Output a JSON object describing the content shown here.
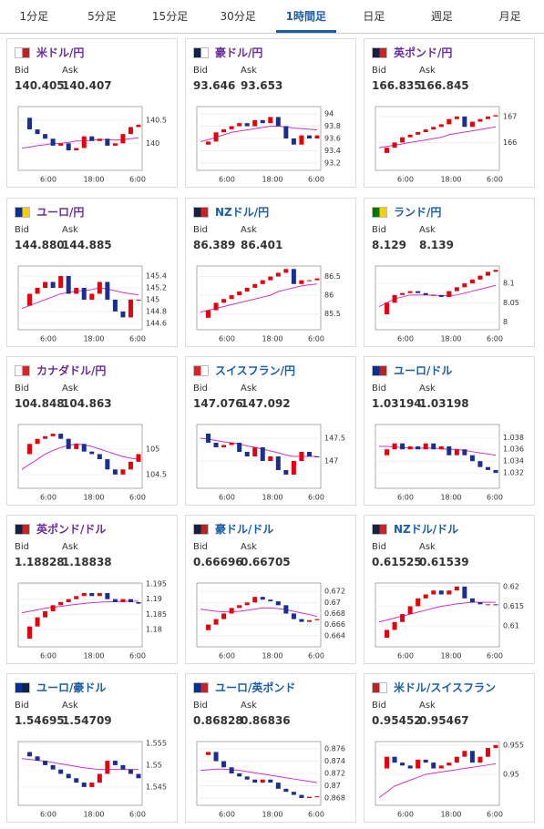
{
  "tabs": [
    "1分足",
    "5分足",
    "15分足",
    "30分足",
    "1時間足",
    "日足",
    "週足",
    "月足"
  ],
  "active_tab": 4,
  "bid_label": "Bid",
  "ask_label": "Ask",
  "xtick_labels": [
    "6:00",
    "18:00",
    "6:00"
  ],
  "candle_up": "#e8000b",
  "candle_down": "#1a2f8f",
  "ma_color": "#cc33cc",
  "cards": [
    {
      "pair": "米ドル/円",
      "title_color": "#6b2d9e",
      "bid": "140.405",
      "ask": "140.407",
      "chart": {
        "type": "candlestick",
        "ylim": [
          139.42,
          140.79
        ],
        "yticks": [
          140.5,
          140
        ],
        "closes": [
          140.55,
          140.3,
          140.2,
          140.1,
          139.95,
          140.0,
          139.85,
          139.9,
          140.15,
          140.05,
          140.1,
          139.95,
          140.0,
          140.2,
          140.35,
          140.4
        ],
        "ma": [
          139.9,
          139.92,
          139.95,
          139.97,
          140.0,
          140.0,
          140.02,
          140.05,
          140.05,
          140.07,
          140.08,
          140.08,
          140.07,
          140.08,
          140.1,
          140.12
        ]
      }
    },
    {
      "pair": "豪ドル/円",
      "title_color": "#6b2d9e",
      "bid": "93.646",
      "ask": "93.653",
      "chart": {
        "type": "candlestick",
        "ylim": [
          93.08,
          94.12
        ],
        "yticks": [
          94,
          93.8,
          93.6,
          93.4,
          93.2
        ],
        "closes": [
          93.5,
          93.55,
          93.7,
          93.75,
          93.8,
          93.85,
          93.8,
          93.9,
          93.85,
          93.95,
          93.8,
          93.6,
          93.5,
          93.65,
          93.6,
          93.65
        ],
        "ma": [
          93.55,
          93.58,
          93.62,
          93.66,
          93.7,
          93.72,
          93.74,
          93.76,
          93.78,
          93.8,
          93.8,
          93.79,
          93.77,
          93.76,
          93.75,
          93.74
        ]
      }
    },
    {
      "pair": "英ポンド/円",
      "title_color": "#6b2d9e",
      "bid": "166.835",
      "ask": "166.845",
      "chart": {
        "type": "candlestick",
        "ylim": [
          164.93,
          167.38
        ],
        "yticks": [
          167,
          166
        ],
        "closes": [
          165.6,
          165.8,
          166.0,
          166.2,
          166.3,
          166.4,
          166.5,
          166.6,
          166.7,
          166.9,
          167.0,
          166.6,
          166.8,
          166.9,
          167.0,
          167.05
        ],
        "ma": [
          165.8,
          165.85,
          165.9,
          165.95,
          166.0,
          166.05,
          166.1,
          166.15,
          166.2,
          166.3,
          166.35,
          166.4,
          166.45,
          166.5,
          166.55,
          166.6
        ]
      }
    },
    {
      "pair": "ユーロ/円",
      "title_color": "#6b2d9e",
      "bid": "144.880",
      "ask": "144.885",
      "chart": {
        "type": "candlestick",
        "ylim": [
          144.49,
          145.57
        ],
        "yticks": [
          145.4,
          145.2,
          145,
          144.8,
          144.6
        ],
        "closes": [
          144.9,
          145.1,
          145.2,
          145.3,
          145.2,
          145.4,
          145.1,
          145.2,
          145.0,
          145.1,
          145.3,
          145.0,
          144.8,
          144.7,
          145.0,
          145.0
        ],
        "ma": [
          144.85,
          144.9,
          144.95,
          145.0,
          145.05,
          145.1,
          145.12,
          145.15,
          145.15,
          145.17,
          145.2,
          145.18,
          145.15,
          145.12,
          145.1,
          145.08
        ]
      }
    },
    {
      "pair": "NZドル/円",
      "title_color": "#1a5ea8",
      "bid": "86.389",
      "ask": "86.401",
      "chart": {
        "type": "candlestick",
        "ylim": [
          85.08,
          86.78
        ],
        "yticks": [
          86.5,
          86,
          85.5
        ],
        "closes": [
          85.4,
          85.6,
          85.8,
          85.9,
          86.0,
          86.1,
          86.2,
          86.3,
          86.4,
          86.5,
          86.6,
          86.7,
          86.3,
          86.4,
          86.4,
          86.45
        ],
        "ma": [
          85.55,
          85.6,
          85.65,
          85.7,
          85.75,
          85.8,
          85.85,
          85.9,
          85.95,
          86.0,
          86.1,
          86.15,
          86.2,
          86.25,
          86.28,
          86.3
        ]
      }
    },
    {
      "pair": "ランド/円",
      "title_color": "#1a5ea8",
      "bid": "8.129",
      "ask": "8.139",
      "chart": {
        "type": "candlestick",
        "ylim": [
          7.98,
          8.145
        ],
        "yticks": [
          8.1,
          8.05,
          8
        ],
        "closes": [
          8.02,
          8.05,
          8.07,
          8.075,
          8.08,
          8.075,
          8.07,
          8.07,
          8.065,
          8.08,
          8.09,
          8.1,
          8.11,
          8.12,
          8.13,
          8.135
        ],
        "ma": [
          8.04,
          8.05,
          8.06,
          8.065,
          8.07,
          8.07,
          8.07,
          8.07,
          8.068,
          8.068,
          8.07,
          8.075,
          8.08,
          8.085,
          8.09,
          8.095
        ]
      }
    },
    {
      "pair": "カナダドル/円",
      "title_color": "#6b2d9e",
      "bid": "104.848",
      "ask": "104.863",
      "chart": {
        "type": "candlestick",
        "ylim": [
          104.23,
          105.48
        ],
        "yticks": [
          105,
          104.5
        ],
        "closes": [
          104.9,
          105.1,
          105.2,
          105.25,
          105.3,
          105.2,
          105.0,
          105.1,
          104.95,
          104.9,
          104.8,
          104.6,
          104.5,
          104.6,
          104.75,
          104.9
        ],
        "ma": [
          104.6,
          104.7,
          104.8,
          104.9,
          104.97,
          105.03,
          105.07,
          105.1,
          105.08,
          105.05,
          105.0,
          104.95,
          104.9,
          104.85,
          104.82,
          104.8
        ]
      }
    },
    {
      "pair": "スイスフラン/円",
      "title_color": "#1a5ea8",
      "bid": "147.076",
      "ask": "147.092",
      "chart": {
        "type": "candlestick",
        "ylim": [
          146.4,
          147.8
        ],
        "yticks": [
          147.5,
          147
        ],
        "closes": [
          147.6,
          147.4,
          147.3,
          147.35,
          147.4,
          147.2,
          147.1,
          147.3,
          147.0,
          147.1,
          146.8,
          146.7,
          147.0,
          147.2,
          147.1,
          147.08
        ],
        "ma": [
          147.5,
          147.48,
          147.45,
          147.42,
          147.4,
          147.37,
          147.33,
          147.3,
          147.26,
          147.22,
          147.18,
          147.13,
          147.1,
          147.1,
          147.1,
          147.1
        ]
      }
    },
    {
      "pair": "ユーロ/ドル",
      "title_color": "#1a5ea8",
      "bid": "1.03194",
      "ask": "1.03198",
      "chart": {
        "type": "candlestick",
        "ylim": [
          1.0294,
          1.0402
        ],
        "yticks": [
          1.038,
          1.036,
          1.034,
          1.032
        ],
        "closes": [
          1.035,
          1.036,
          1.037,
          1.036,
          1.0365,
          1.036,
          1.037,
          1.036,
          1.0365,
          1.035,
          1.036,
          1.035,
          1.034,
          1.033,
          1.0325,
          1.032
        ],
        "ma": [
          1.0365,
          1.0365,
          1.0364,
          1.0363,
          1.0362,
          1.0362,
          1.0362,
          1.0362,
          1.0361,
          1.036,
          1.036,
          1.0358,
          1.0356,
          1.0354,
          1.0352,
          1.035
        ]
      }
    },
    {
      "pair": "英ポンド/ドル",
      "title_color": "#6b2d9e",
      "bid": "1.18828",
      "ask": "1.18838",
      "chart": {
        "type": "candlestick",
        "ylim": [
          1.1743,
          1.1953
        ],
        "yticks": [
          1.195,
          1.19,
          1.185,
          1.18
        ],
        "closes": [
          1.177,
          1.181,
          1.184,
          1.186,
          1.188,
          1.189,
          1.19,
          1.191,
          1.192,
          1.191,
          1.192,
          1.19,
          1.189,
          1.19,
          1.189,
          1.1885
        ],
        "ma": [
          1.1855,
          1.186,
          1.1865,
          1.187,
          1.1873,
          1.1876,
          1.188,
          1.1883,
          1.1886,
          1.1888,
          1.189,
          1.1891,
          1.1892,
          1.1893,
          1.1893,
          1.1893
        ]
      }
    },
    {
      "pair": "豪ドル/ドル",
      "title_color": "#1a5ea8",
      "bid": "0.66696",
      "ask": "0.66705",
      "chart": {
        "type": "candlestick",
        "ylim": [
          0.662,
          0.6735
        ],
        "yticks": [
          0.672,
          0.67,
          0.668,
          0.666,
          0.664
        ],
        "closes": [
          0.665,
          0.666,
          0.667,
          0.668,
          0.669,
          0.6695,
          0.67,
          0.671,
          0.6705,
          0.6702,
          0.6695,
          0.668,
          0.667,
          0.6665,
          0.6668,
          0.667
        ],
        "ma": [
          0.6688,
          0.6686,
          0.6684,
          0.6683,
          0.6683,
          0.6684,
          0.6686,
          0.6688,
          0.669,
          0.669,
          0.6689,
          0.6687,
          0.6684,
          0.6681,
          0.6678,
          0.6675
        ]
      }
    },
    {
      "pair": "NZドル/ドル",
      "title_color": "#1a5ea8",
      "bid": "0.61525",
      "ask": "0.61539",
      "chart": {
        "type": "candlestick",
        "ylim": [
          0.6047,
          0.6209
        ],
        "yticks": [
          0.62,
          0.615,
          0.61
        ],
        "closes": [
          0.607,
          0.609,
          0.611,
          0.613,
          0.615,
          0.617,
          0.618,
          0.619,
          0.618,
          0.619,
          0.62,
          0.617,
          0.616,
          0.6155,
          0.6155,
          0.6154
        ],
        "ma": [
          0.611,
          0.6115,
          0.612,
          0.6125,
          0.613,
          0.6135,
          0.614,
          0.6145,
          0.615,
          0.6153,
          0.6156,
          0.6158,
          0.616,
          0.616,
          0.616,
          0.616
        ]
      }
    },
    {
      "pair": "ユーロ/豪ドル",
      "title_color": "#1a5ea8",
      "bid": "1.54695",
      "ask": "1.54709",
      "chart": {
        "type": "candlestick",
        "ylim": [
          1.5408,
          1.5554
        ],
        "yticks": [
          1.555,
          1.55,
          1.545
        ],
        "closes": [
          1.553,
          1.552,
          1.551,
          1.55,
          1.549,
          1.548,
          1.547,
          1.546,
          1.545,
          1.546,
          1.548,
          1.551,
          1.55,
          1.549,
          1.548,
          1.547
        ],
        "ma": [
          1.5515,
          1.5513,
          1.5511,
          1.5509,
          1.5506,
          1.5503,
          1.55,
          1.5497,
          1.5494,
          1.5492,
          1.549,
          1.549,
          1.549,
          1.549,
          1.549,
          1.549
        ]
      }
    },
    {
      "pair": "ユーロ/英ポンド",
      "title_color": "#1a5ea8",
      "bid": "0.86828",
      "ask": "0.86836",
      "chart": {
        "type": "candlestick",
        "ylim": [
          0.8668,
          0.8772
        ],
        "yticks": [
          0.876,
          0.874,
          0.872,
          0.87,
          0.868
        ],
        "closes": [
          0.875,
          0.8755,
          0.874,
          0.873,
          0.872,
          0.8715,
          0.871,
          0.8705,
          0.871,
          0.8705,
          0.8695,
          0.869,
          0.8685,
          0.868,
          0.8682,
          0.8683
        ],
        "ma": [
          0.8725,
          0.8726,
          0.8727,
          0.8727,
          0.8726,
          0.8725,
          0.8723,
          0.8721,
          0.8719,
          0.8717,
          0.8715,
          0.8713,
          0.8711,
          0.8709,
          0.8707,
          0.8705
        ]
      }
    },
    {
      "pair": "米ドル/スイスフラン",
      "title_color": "#1a5ea8",
      "bid": "0.95452",
      "ask": "0.95467",
      "chart": {
        "type": "candlestick",
        "ylim": [
          0.9447,
          0.9556
        ],
        "yticks": [
          0.955,
          0.95
        ],
        "closes": [
          0.951,
          0.953,
          0.952,
          0.9515,
          0.951,
          0.9525,
          0.952,
          0.951,
          0.9515,
          0.952,
          0.953,
          0.954,
          0.952,
          0.953,
          0.9545,
          0.955
        ],
        "ma": [
          0.946,
          0.947,
          0.948,
          0.9485,
          0.949,
          0.9495,
          0.95,
          0.9502,
          0.9504,
          0.9506,
          0.9508,
          0.951,
          0.9512,
          0.9514,
          0.9516,
          0.9518
        ]
      }
    }
  ]
}
